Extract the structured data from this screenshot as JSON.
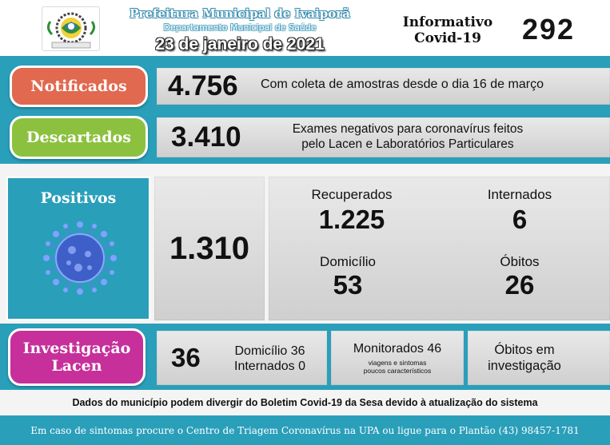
{
  "header": {
    "title": "Prefeitura Municipal de Ivaiporã",
    "department": "Departamento Municipal de Saúde",
    "date": "23 de janeiro de 2021",
    "info_line1": "Informativo",
    "info_line2": "Covid-19",
    "number": "292"
  },
  "notificados": {
    "label": "Notificados",
    "value": "4.756",
    "description": "Com coleta de amostras desde o dia 16 de março",
    "color": "#e0694f"
  },
  "descartados": {
    "label": "Descartados",
    "value": "3.410",
    "description_line1": "Exames negativos para coronavírus feitos",
    "description_line2": "pelo Lacen e Laboratórios Particulares",
    "color": "#8cc13f"
  },
  "positivos": {
    "label": "Positivos",
    "value": "1.310",
    "recuperados_label": "Recuperados",
    "recuperados_value": "1.225",
    "internados_label": "Internados",
    "internados_value": "6",
    "domicilio_label": "Domicílio",
    "domicilio_value": "53",
    "obitos_label": "Óbitos",
    "obitos_value": "26",
    "color": "#2a9fba"
  },
  "investigacao": {
    "label_line1": "Investigação",
    "label_line2": "Lacen",
    "value": "36",
    "domicilio_text": "Domicílio 36",
    "internados_text": "Internados 0",
    "monitorados_text": "Monitorados 46",
    "monitorados_sub1": "viagens e sintomas",
    "monitorados_sub2": "poucos característicos",
    "obitos_line1": "Óbitos em",
    "obitos_line2": "investigação",
    "color": "#c7309a"
  },
  "footer": {
    "note": "Dados do município podem divergir do Boletim Covid-19 da Sesa devido à atualização do sistema",
    "contact": "Em caso de sintomas procure o Centro de Triagem Coronavírus na UPA ou ligue para o Plantão (43) 98457-1781"
  }
}
